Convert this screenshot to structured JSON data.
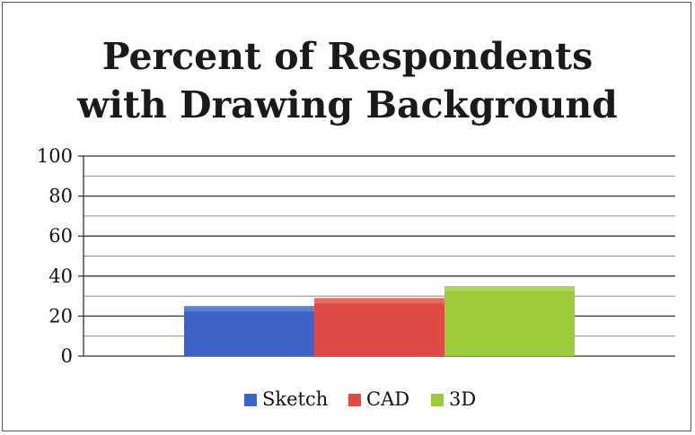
{
  "chart_data": {
    "type": "bar",
    "title_lines": [
      "Percent of Respondents",
      "with Drawing Background"
    ],
    "categories": [
      ""
    ],
    "series": [
      {
        "name": "Sketch",
        "values": [
          25
        ],
        "color": "#3d62c8"
      },
      {
        "name": "CAD",
        "values": [
          29
        ],
        "color": "#e04a44"
      },
      {
        "name": "3D",
        "values": [
          35
        ],
        "color": "#9ccc3c"
      }
    ],
    "ylim": [
      0,
      100
    ],
    "yticks": [
      0,
      20,
      40,
      60,
      80,
      100
    ],
    "minor_grid_step": 10,
    "grid": true,
    "legend_position": "bottom",
    "xlabel": "",
    "ylabel": ""
  }
}
